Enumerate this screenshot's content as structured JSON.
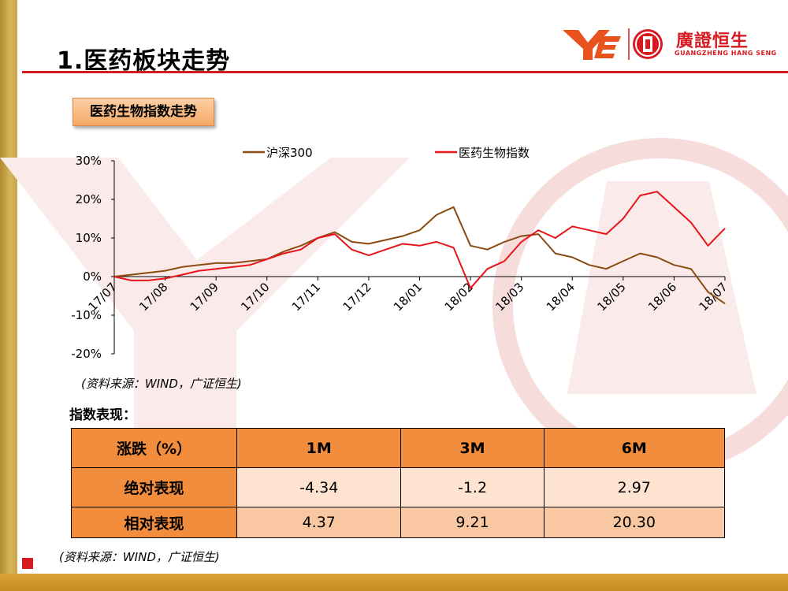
{
  "header": {
    "title": "1.医药板块走势",
    "logo_cn": "廣證恒生",
    "logo_en": "GUANGZHENG HANG SENG",
    "chart_label": "医药生物指数走势"
  },
  "colors": {
    "hs300": "#8b4a10",
    "med": "#e8141a",
    "accent": "#d71920",
    "table_header": "#f28d3e"
  },
  "chart_data": {
    "type": "line",
    "title": "",
    "xlabel": "",
    "ylabel": "",
    "x_ticks": [
      "17/07",
      "17/08",
      "17/09",
      "17/10",
      "17/11",
      "17/12",
      "18/01",
      "18/02",
      "18/03",
      "18/04",
      "18/05",
      "18/06",
      "18/07"
    ],
    "y_ticks": [
      "30%",
      "20%",
      "10%",
      "0%",
      "-10%",
      "-20%"
    ],
    "ylim": [
      -20,
      30
    ],
    "legend_position": "top",
    "series": [
      {
        "name": "沪深300",
        "color": "#8b4a10",
        "x": [
          "17/07",
          "17/07",
          "17/07",
          "17/08",
          "17/08",
          "17/08",
          "17/09",
          "17/09",
          "17/09",
          "17/10",
          "17/10",
          "17/10",
          "17/11",
          "17/11",
          "17/11",
          "17/12",
          "17/12",
          "17/12",
          "18/01",
          "18/01",
          "18/01",
          "18/02",
          "18/02",
          "18/02",
          "18/03",
          "18/03",
          "18/03",
          "18/04",
          "18/04",
          "18/04",
          "18/05",
          "18/05",
          "18/05",
          "18/06",
          "18/06",
          "18/06",
          "18/07"
        ],
        "values": [
          0,
          0.5,
          1,
          1.5,
          2.5,
          3,
          3.5,
          3.5,
          4,
          4.5,
          6.5,
          8,
          10,
          11.5,
          9,
          8.5,
          9.5,
          10.5,
          12,
          16,
          18,
          8,
          7,
          9,
          10.5,
          11,
          6,
          5,
          3,
          2,
          4,
          6,
          5,
          3,
          2,
          -4,
          -7
        ]
      },
      {
        "name": "医药生物指数",
        "color": "#e8141a",
        "x": [
          "17/07",
          "17/07",
          "17/07",
          "17/08",
          "17/08",
          "17/08",
          "17/09",
          "17/09",
          "17/09",
          "17/10",
          "17/10",
          "17/10",
          "17/11",
          "17/11",
          "17/11",
          "17/12",
          "17/12",
          "17/12",
          "18/01",
          "18/01",
          "18/01",
          "18/02",
          "18/02",
          "18/02",
          "18/03",
          "18/03",
          "18/03",
          "18/04",
          "18/04",
          "18/04",
          "18/05",
          "18/05",
          "18/05",
          "18/06",
          "18/06",
          "18/06",
          "18/07"
        ],
        "values": [
          0,
          -1,
          -1,
          -0.5,
          0.5,
          1.5,
          2,
          2.5,
          3,
          4.5,
          6,
          7,
          10,
          11,
          7,
          5.5,
          7,
          8.5,
          8,
          9,
          7.5,
          -3,
          2,
          4,
          9,
          12,
          10,
          13,
          12,
          11,
          15,
          21,
          22,
          18,
          14,
          8,
          12.5
        ]
      }
    ]
  },
  "chart_source": "(资料来源：WIND，广证恒生)",
  "performance": {
    "heading": "指数表现：",
    "header_row": [
      "涨跌（%）",
      "1M",
      "3M",
      "6M"
    ],
    "rows": [
      {
        "label": "绝对表现",
        "values": [
          "-4.34",
          "-1.2",
          "2.97"
        ]
      },
      {
        "label": "相对表现",
        "values": [
          "4.37",
          "9.21",
          "20.30"
        ]
      }
    ]
  },
  "table_source": "(资料来源：WIND，广证恒生)"
}
